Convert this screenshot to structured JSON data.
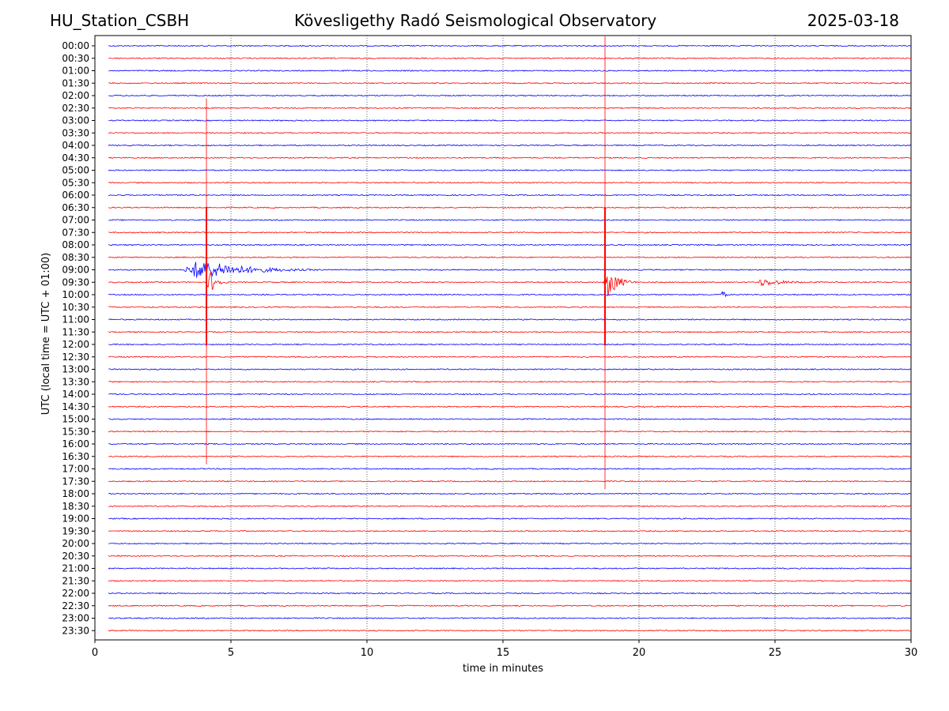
{
  "header": {
    "station": "HU_Station_CSBH",
    "observatory": "Kövesligethy Radó Seismological Observatory",
    "date": "2025-03-18"
  },
  "chart_data": {
    "type": "line",
    "title": "Kövesligethy Radó Seismological Observatory",
    "xlabel": "time in minutes",
    "ylabel": "UTC (local time = UTC + 01:00)",
    "xlim": [
      0,
      30
    ],
    "x_ticks": [
      0,
      5,
      10,
      15,
      20,
      25,
      30
    ],
    "x_tick_labels": [
      "0",
      "5",
      "10",
      "15",
      "20",
      "25",
      "30"
    ],
    "grid": "vertical dotted lines at x ticks",
    "row_labels": [
      "00:00",
      "00:30",
      "01:00",
      "01:30",
      "02:00",
      "02:30",
      "03:00",
      "03:30",
      "04:00",
      "04:30",
      "05:00",
      "05:30",
      "06:00",
      "06:30",
      "07:00",
      "07:30",
      "08:00",
      "08:30",
      "09:00",
      "09:30",
      "10:00",
      "10:30",
      "11:00",
      "11:30",
      "12:00",
      "12:30",
      "13:00",
      "13:30",
      "14:00",
      "14:30",
      "15:00",
      "15:30",
      "16:00",
      "16:30",
      "17:00",
      "17:30",
      "18:00",
      "18:30",
      "19:00",
      "19:30",
      "20:00",
      "20:30",
      "21:00",
      "21:30",
      "22:00",
      "22:30",
      "23:00",
      "23:30"
    ],
    "trace_colors": [
      "#0000ff",
      "#ff0000"
    ],
    "trace_color_pattern": "alternating, blue at hh:00, red at hh:30",
    "events": [
      {
        "row": "09:00",
        "start_min": 3.2,
        "end_min": 8.4,
        "peak_amplitude": 0.9
      },
      {
        "row": "09:30",
        "start_min": 4.1,
        "end_min": 4.9,
        "peak_amplitude": 1.2
      },
      {
        "row": "09:30",
        "start_min": 18.7,
        "end_min": 19.9,
        "peak_amplitude": 1.4
      },
      {
        "row": "10:00",
        "start_min": 23.0,
        "end_min": 23.4,
        "peak_amplitude": 0.45
      },
      {
        "row": "09:30",
        "start_min": 24.2,
        "end_min": 27.0,
        "peak_amplitude": 0.35
      },
      {
        "row": "10:30",
        "start_min": 24.9,
        "end_min": 25.2,
        "peak_amplitude": 0.15
      },
      {
        "row": "17:30",
        "start_min": 2.6,
        "end_min": 3.0,
        "peak_amplitude": 0.15
      }
    ],
    "spikes": [
      {
        "x_min": 4.1,
        "from_row": "02:30",
        "to_row": "16:30"
      },
      {
        "x_min": 18.75,
        "from_row": "00:00",
        "to_row": "17:30"
      }
    ]
  }
}
